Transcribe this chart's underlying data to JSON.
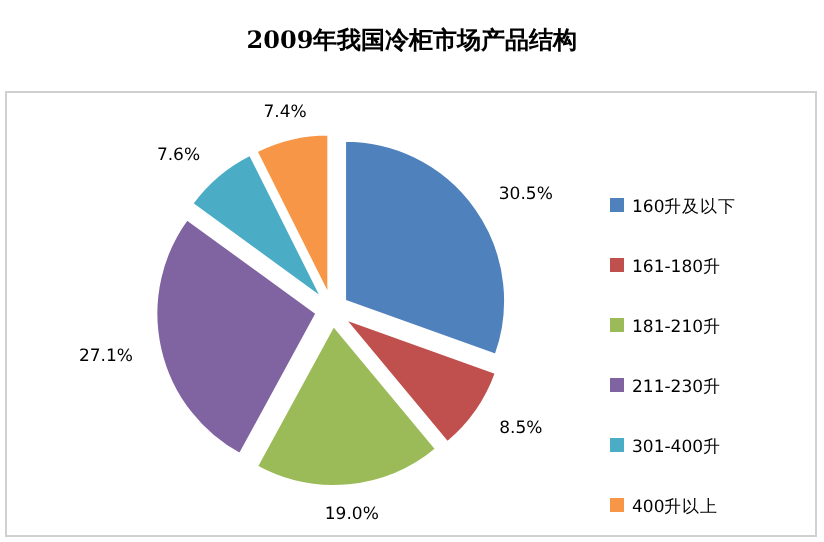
{
  "chart_data": {
    "type": "pie",
    "title": "2009年我国冷柜市场产品结构",
    "categories": [
      "160升及以下",
      "161-180升",
      "181-210升",
      "211-230升",
      "301-400升",
      "400升以上"
    ],
    "values": [
      30.5,
      8.5,
      19.0,
      27.1,
      7.6,
      7.4
    ],
    "value_labels": [
      "30.5%",
      "8.5%",
      "19.0%",
      "27.1%",
      "7.6%",
      "7.4%"
    ],
    "colors": [
      "#4f81bd",
      "#c0504d",
      "#9bbb59",
      "#8064a2",
      "#4bacc6",
      "#f79646"
    ],
    "legend": "right"
  }
}
